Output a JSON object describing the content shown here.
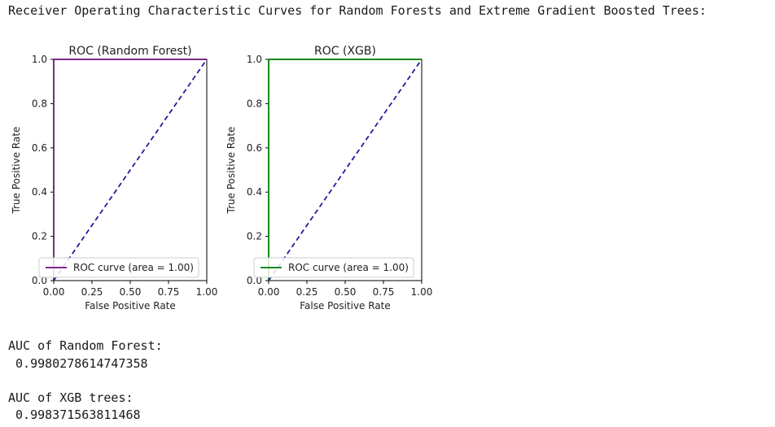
{
  "heading": "Receiver Operating Characteristic Curves for Random Forests and Extreme Gradient Boosted Trees:",
  "chart_data": [
    {
      "type": "line",
      "title": "ROC (Random Forest)",
      "xlabel": "False Positive Rate",
      "ylabel": "True Positive Rate",
      "xlim": [
        0,
        1
      ],
      "ylim": [
        0,
        1
      ],
      "xticks": [
        "0.00",
        "0.25",
        "0.50",
        "0.75",
        "1.00"
      ],
      "yticks": [
        "0.0",
        "0.2",
        "0.4",
        "0.6",
        "0.8",
        "1.0"
      ],
      "grid": false,
      "legend_position": "lower-right",
      "series": [
        {
          "name": "ROC curve (area = 1.00)",
          "color": "#7b2a8a",
          "style": "solid",
          "x": [
            0,
            0,
            1
          ],
          "y": [
            0,
            1,
            1
          ]
        },
        {
          "color": "#1f1f9f",
          "style": "dashed",
          "x": [
            0,
            1
          ],
          "y": [
            0,
            1
          ]
        }
      ]
    },
    {
      "type": "line",
      "title": "ROC (XGB)",
      "xlabel": "False Positive Rate",
      "ylabel": "True Positive Rate",
      "xlim": [
        0,
        1
      ],
      "ylim": [
        0,
        1
      ],
      "xticks": [
        "0.00",
        "0.25",
        "0.50",
        "0.75",
        "1.00"
      ],
      "yticks": [
        "0.0",
        "0.2",
        "0.4",
        "0.6",
        "0.8",
        "1.0"
      ],
      "grid": false,
      "legend_position": "lower-right",
      "series": [
        {
          "name": "ROC curve (area = 1.00)",
          "color": "#1b8a1b",
          "style": "solid",
          "x": [
            0,
            0,
            1
          ],
          "y": [
            0,
            1,
            1
          ]
        },
        {
          "color": "#1f1f9f",
          "style": "dashed",
          "x": [
            0,
            1
          ],
          "y": [
            0,
            1
          ]
        }
      ]
    }
  ],
  "output": {
    "rf_label": "AUC of Random Forest:",
    "rf_value": " 0.9980278614747358",
    "xgb_label": "AUC of XGB trees:",
    "xgb_value": " 0.998371563811468"
  }
}
